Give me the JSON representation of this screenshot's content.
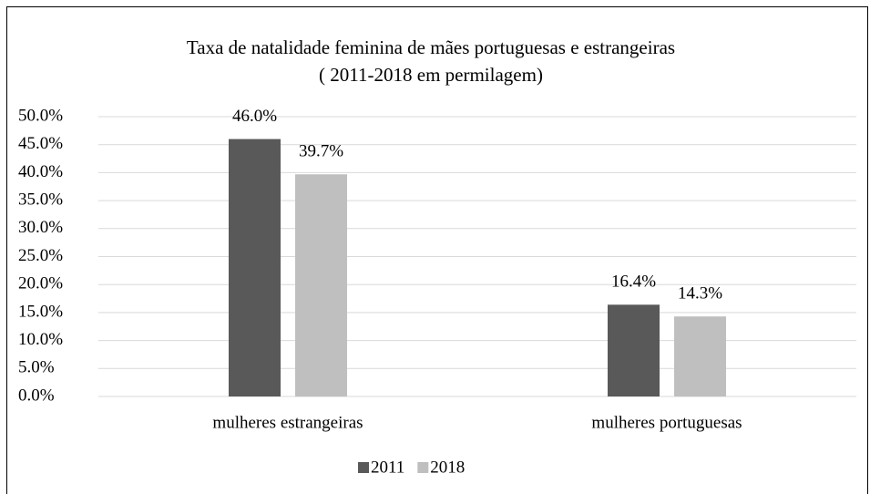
{
  "chart_data": {
    "type": "bar",
    "title": "Taxa de natalidade feminina de mães portuguesas e estrangeiras",
    "subtitle": "( 2011-2018 em permilagem)",
    "categories": [
      "mulheres estrangeiras",
      "mulheres portuguesas"
    ],
    "series": [
      {
        "name": "2011",
        "color": "#595959",
        "values": [
          46.0,
          16.4
        ],
        "value_labels": [
          "46.0%",
          "16.4%"
        ]
      },
      {
        "name": "2018",
        "color": "#bfbfbf",
        "values": [
          39.7,
          14.3
        ],
        "value_labels": [
          "39.7%",
          "14.3%"
        ]
      }
    ],
    "ylim": [
      0,
      50
    ],
    "yticks": [
      {
        "value": 0,
        "label": "0.0%"
      },
      {
        "value": 5,
        "label": "5.0%"
      },
      {
        "value": 10,
        "label": "10.0%"
      },
      {
        "value": 15,
        "label": "15.0%"
      },
      {
        "value": 20,
        "label": "20.0%"
      },
      {
        "value": 25,
        "label": "25.0%"
      },
      {
        "value": 30,
        "label": "30.0%"
      },
      {
        "value": 35,
        "label": "35.0%"
      },
      {
        "value": 40,
        "label": "40.0%"
      },
      {
        "value": 45,
        "label": "45.0%"
      },
      {
        "value": 50,
        "label": "50.0%"
      }
    ],
    "grid": true,
    "legend": "bottom"
  }
}
